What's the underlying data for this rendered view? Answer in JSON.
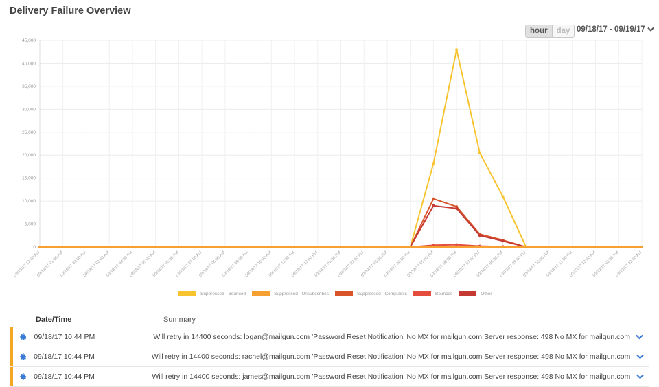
{
  "header": {
    "title": "Delivery Failure Overview",
    "toggle": {
      "hour": "hour",
      "day": "day",
      "selected": "hour"
    },
    "date_range": "09/18/17 - 09/19/17"
  },
  "chart_data": {
    "type": "line",
    "title": "Delivery Failure Overview",
    "xlabel": "",
    "ylabel": "",
    "ylim": [
      0,
      45000
    ],
    "yticks": [
      0,
      5000,
      10000,
      15000,
      20000,
      25000,
      30000,
      35000,
      40000,
      45000
    ],
    "ytick_labels": [
      "0",
      "5,000",
      "10,000",
      "15,000",
      "20,000",
      "25,000",
      "30,000",
      "35,000",
      "40,000",
      "45,000"
    ],
    "grid": true,
    "legend_position": "bottom",
    "categories": [
      "09/18/17 12:00 AM",
      "09/18/17 01:00 AM",
      "09/18/17 02:00 AM",
      "09/18/17 03:00 AM",
      "09/18/17 04:00 AM",
      "09/18/17 05:00 AM",
      "09/18/17 06:00 AM",
      "09/18/17 07:00 AM",
      "09/18/17 08:00 AM",
      "09/18/17 09:00 AM",
      "09/18/17 10:00 AM",
      "09/18/17 11:00 AM",
      "09/18/17 12:00 PM",
      "09/18/17 01:00 PM",
      "09/18/17 02:00 PM",
      "09/18/17 03:00 PM",
      "09/18/17 04:00 PM",
      "09/18/17 05:00 PM",
      "09/18/17 06:00 PM",
      "09/18/17 07:00 PM",
      "09/18/17 08:00 PM",
      "09/18/17 09:00 PM",
      "09/18/17 10:00 PM",
      "09/18/17 11:00 PM",
      "09/19/17 12:00 AM",
      "09/19/17 01:00 AM",
      "09/19/17 02:00 AM"
    ],
    "series": [
      {
        "name": "Suppressed - Bounced",
        "color": "#f7c32e",
        "values": [
          0,
          0,
          0,
          0,
          0,
          0,
          0,
          0,
          0,
          0,
          0,
          0,
          0,
          0,
          0,
          0,
          0,
          18200,
          43000,
          20500,
          11000,
          0,
          0,
          0,
          0,
          0,
          0
        ]
      },
      {
        "name": "Suppressed - Unsubscribes",
        "color": "#f5a030",
        "values": [
          0,
          0,
          0,
          0,
          0,
          0,
          0,
          0,
          0,
          0,
          0,
          0,
          0,
          0,
          0,
          0,
          0,
          0,
          0,
          0,
          0,
          0,
          0,
          0,
          0,
          0,
          0
        ]
      },
      {
        "name": "Suppressed - Complaints",
        "color": "#d9542b",
        "values": [
          0,
          0,
          0,
          0,
          0,
          0,
          0,
          0,
          0,
          0,
          0,
          0,
          0,
          0,
          0,
          0,
          0,
          10500,
          8800,
          2800,
          1500,
          0,
          0,
          0,
          0,
          0,
          0
        ]
      },
      {
        "name": "Bounces",
        "color": "#e44c3b",
        "values": [
          0,
          0,
          0,
          0,
          0,
          0,
          0,
          0,
          0,
          0,
          0,
          0,
          0,
          0,
          0,
          0,
          0,
          400,
          500,
          200,
          100,
          0,
          0,
          0,
          0,
          0,
          0
        ]
      },
      {
        "name": "Other",
        "color": "#c43a32",
        "values": [
          0,
          0,
          0,
          0,
          0,
          0,
          0,
          0,
          0,
          0,
          0,
          0,
          0,
          0,
          0,
          0,
          0,
          9000,
          8400,
          2500,
          1300,
          0,
          0,
          0,
          0,
          0,
          0
        ]
      }
    ]
  },
  "table": {
    "columns": {
      "datetime": "Date/Time",
      "summary": "Summary"
    },
    "rows": [
      {
        "datetime": "09/18/17 10:44 PM",
        "summary": "Will retry in 14400 seconds: logan@mailgun.com 'Password Reset Notification' No MX for mailgun.com Server response: 498 No MX for mailgun.com"
      },
      {
        "datetime": "09/18/17 10:44 PM",
        "summary": "Will retry in 14400 seconds: rachel@mailgun.com 'Password Reset Notification' No MX for mailgun.com Server response: 498 No MX for mailgun.com"
      },
      {
        "datetime": "09/18/17 10:44 PM",
        "summary": "Will retry in 14400 seconds: james@mailgun.com 'Password Reset Notification' No MX for mailgun.com Server response: 498 No MX for mailgun.com"
      }
    ]
  }
}
